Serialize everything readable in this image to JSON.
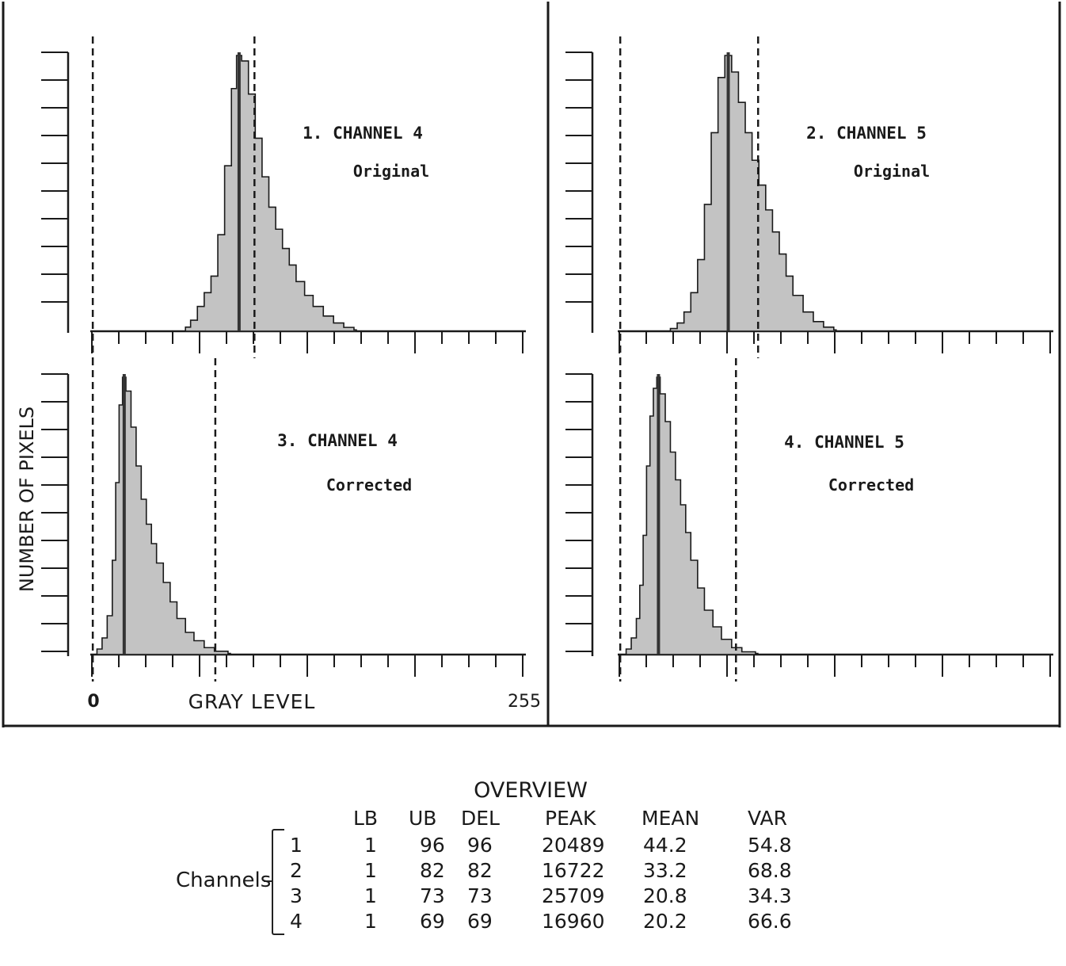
{
  "chart_data": [
    {
      "type": "histogram",
      "title": "1. CHANNEL 4",
      "subtitle": "Original",
      "xlim": [
        0,
        255
      ],
      "dashed_bounds": [
        1,
        96
      ],
      "peak": 20489,
      "x": [
        55,
        58,
        62,
        66,
        70,
        74,
        78,
        82,
        85,
        88,
        92,
        96,
        100,
        104,
        108,
        112,
        116,
        120,
        125,
        130,
        136,
        142,
        148,
        154
      ],
      "values": [
        0.015,
        0.04,
        0.09,
        0.14,
        0.2,
        0.35,
        0.6,
        0.88,
        1.0,
        0.98,
        0.86,
        0.7,
        0.56,
        0.45,
        0.37,
        0.3,
        0.24,
        0.18,
        0.13,
        0.09,
        0.055,
        0.03,
        0.014,
        0.005
      ]
    },
    {
      "type": "histogram",
      "title": "2. CHANNEL 5",
      "subtitle": "Original",
      "xlim": [
        0,
        255
      ],
      "dashed_bounds": [
        1,
        82
      ],
      "peak": 16722,
      "x": [
        30,
        34,
        38,
        42,
        46,
        50,
        54,
        58,
        62,
        66,
        70,
        74,
        78,
        82,
        86,
        90,
        94,
        98,
        102,
        108,
        114,
        120,
        126
      ],
      "values": [
        0.01,
        0.03,
        0.07,
        0.14,
        0.26,
        0.46,
        0.72,
        0.92,
        1.0,
        0.94,
        0.83,
        0.72,
        0.62,
        0.53,
        0.44,
        0.36,
        0.28,
        0.2,
        0.13,
        0.07,
        0.035,
        0.015,
        0.005
      ]
    },
    {
      "type": "histogram",
      "title": "3. CHANNEL 4",
      "subtitle": "Corrected",
      "xlim": [
        0,
        255
      ],
      "dashed_bounds": [
        1,
        73
      ],
      "peak": 25709,
      "x": [
        3,
        6,
        9,
        12,
        14,
        16,
        18,
        20,
        23,
        26,
        29,
        32,
        35,
        38,
        42,
        46,
        50,
        55,
        60,
        66,
        72,
        80
      ],
      "values": [
        0.02,
        0.06,
        0.14,
        0.34,
        0.62,
        0.9,
        1.0,
        0.95,
        0.82,
        0.68,
        0.56,
        0.47,
        0.4,
        0.33,
        0.26,
        0.19,
        0.13,
        0.08,
        0.05,
        0.025,
        0.012,
        0.004
      ]
    },
    {
      "type": "histogram",
      "title": "4. CHANNEL 5",
      "subtitle": "Corrected",
      "xlim": [
        0,
        255
      ],
      "dashed_bounds": [
        1,
        69
      ],
      "peak": 16960,
      "x": [
        4,
        7,
        10,
        12,
        14,
        16,
        18,
        20,
        22,
        24,
        27,
        30,
        33,
        36,
        39,
        42,
        46,
        50,
        55,
        60,
        66,
        72,
        80
      ],
      "values": [
        0.02,
        0.06,
        0.13,
        0.25,
        0.43,
        0.68,
        0.86,
        0.96,
        1.0,
        0.94,
        0.84,
        0.73,
        0.63,
        0.54,
        0.44,
        0.34,
        0.24,
        0.16,
        0.1,
        0.055,
        0.025,
        0.01,
        0.004
      ]
    }
  ],
  "axes": {
    "ylabel": "NUMBER OF PIXELS",
    "xlabel": "GRAY LEVEL",
    "xmin_label": "0",
    "xmax_label": "255"
  },
  "overview": {
    "title": "OVERVIEW",
    "group_label": "Channels",
    "columns": [
      "LB",
      "UB",
      "DEL",
      "PEAK",
      "MEAN",
      "VAR"
    ],
    "rows": [
      {
        "channel": "1",
        "values": [
          "1",
          "96",
          "96",
          "20489",
          "44.2",
          "54.8"
        ]
      },
      {
        "channel": "2",
        "values": [
          "1",
          "82",
          "82",
          "16722",
          "33.2",
          "68.8"
        ]
      },
      {
        "channel": "3",
        "values": [
          "1",
          "73",
          "73",
          "25709",
          "20.8",
          "34.3"
        ]
      },
      {
        "channel": "4",
        "values": [
          "1",
          "69",
          "69",
          "16960",
          "20.2",
          "66.6"
        ]
      }
    ]
  },
  "colors": {
    "ink": "#1a1a1a",
    "fill": "#b8b8b8",
    "background": "#ffffff"
  }
}
